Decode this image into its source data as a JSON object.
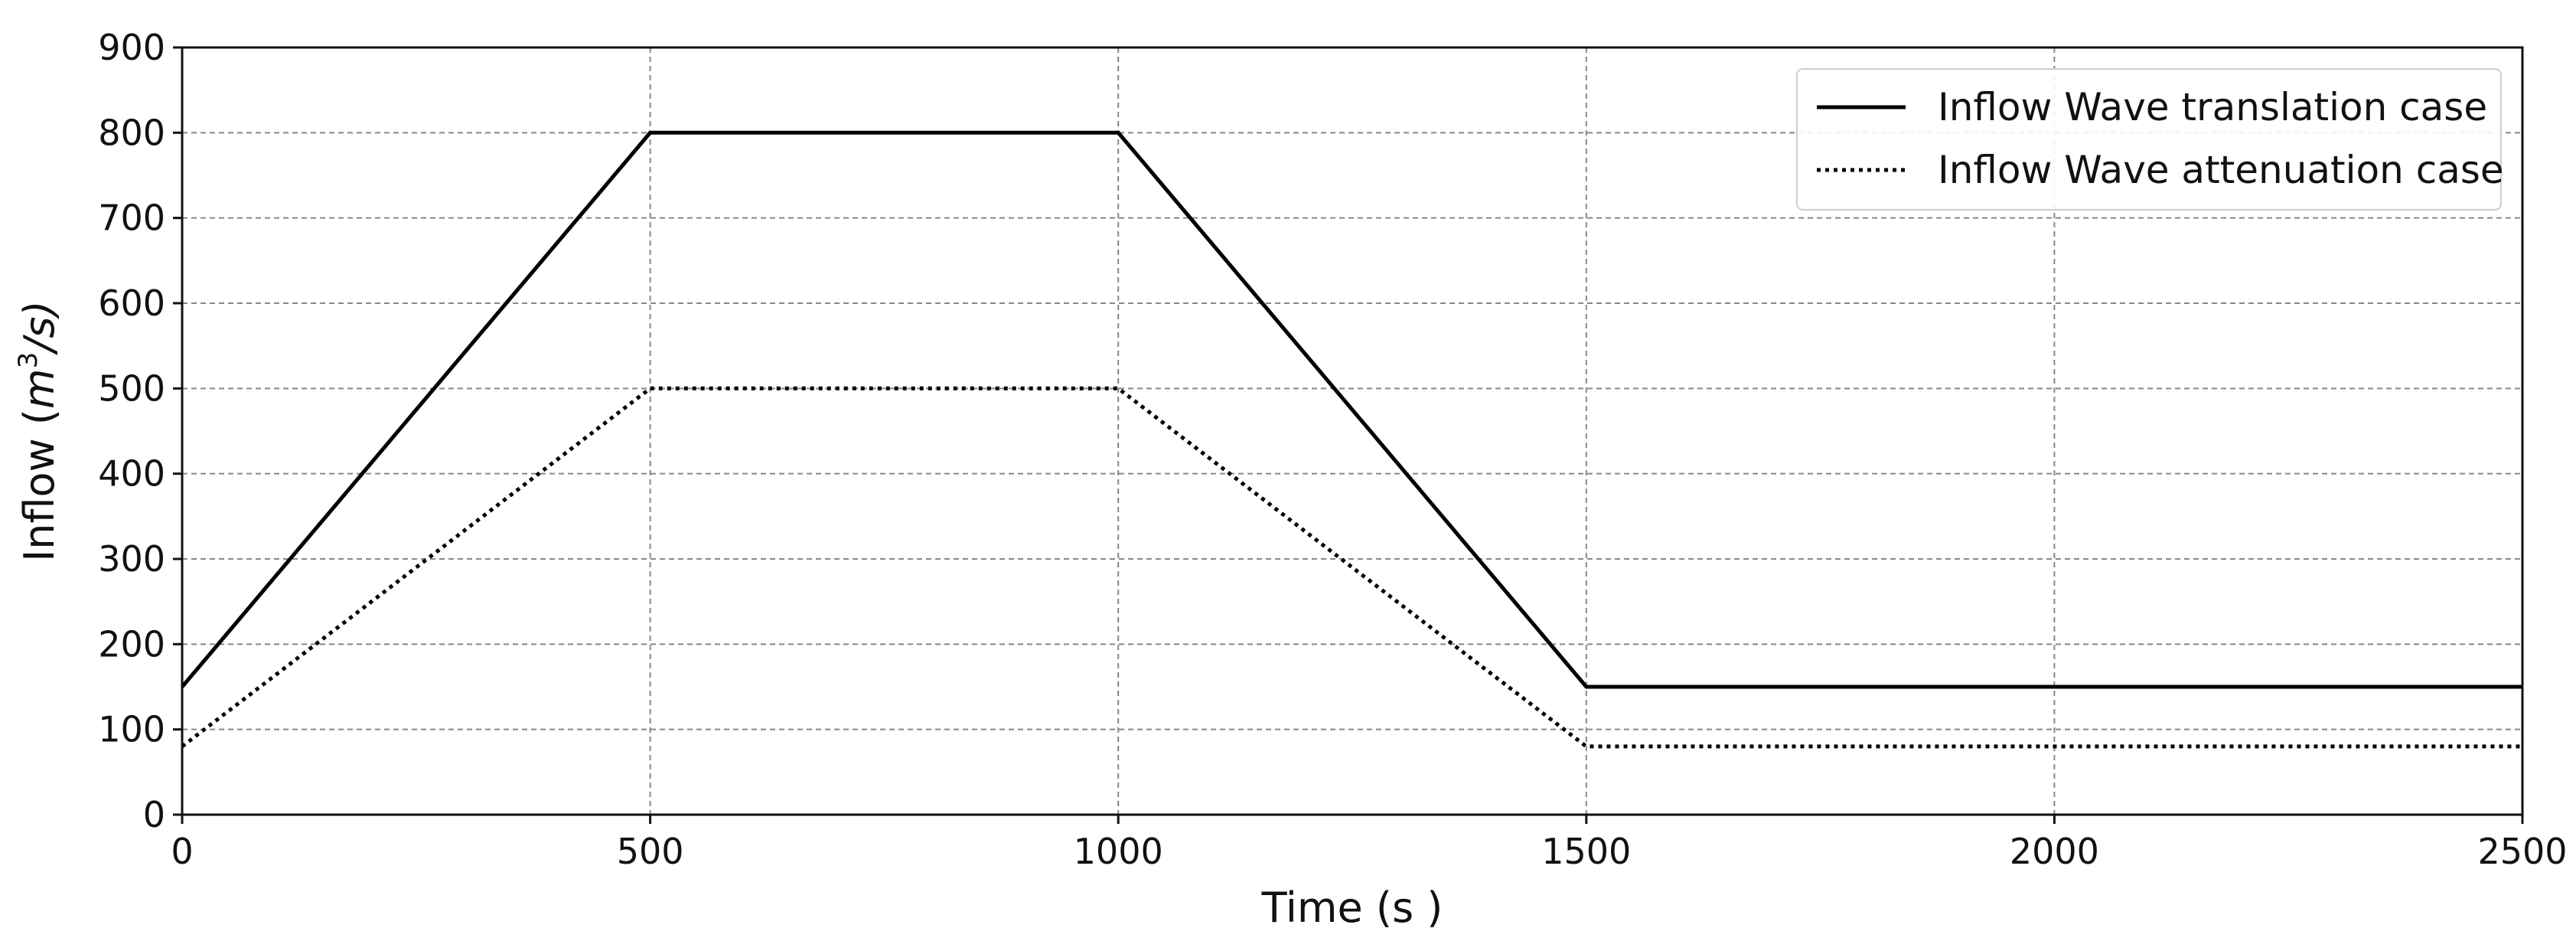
{
  "chart_data": {
    "type": "line",
    "title": "",
    "xlabel": "Time (s )",
    "ylabel_prefix": "Inflow (",
    "ylabel_math": "m",
    "ylabel_sup": "3",
    "ylabel_suffix": "/s)",
    "xlim": [
      0,
      2500
    ],
    "ylim": [
      0,
      900
    ],
    "xticks": [
      0,
      500,
      1000,
      1500,
      2000,
      2500
    ],
    "yticks": [
      0,
      100,
      200,
      300,
      400,
      500,
      600,
      700,
      800,
      900
    ],
    "grid": true,
    "legend_position": "top-right",
    "series": [
      {
        "name": "Inflow Wave translation case",
        "style": "solid",
        "color": "#000000",
        "x": [
          0,
          500,
          1000,
          1500,
          2500
        ],
        "y": [
          150,
          800,
          800,
          150,
          150
        ]
      },
      {
        "name": "Inflow Wave attenuation case",
        "style": "dotted",
        "color": "#000000",
        "x": [
          0,
          500,
          1000,
          1500,
          2500
        ],
        "y": [
          80,
          500,
          500,
          80,
          80
        ]
      }
    ]
  }
}
